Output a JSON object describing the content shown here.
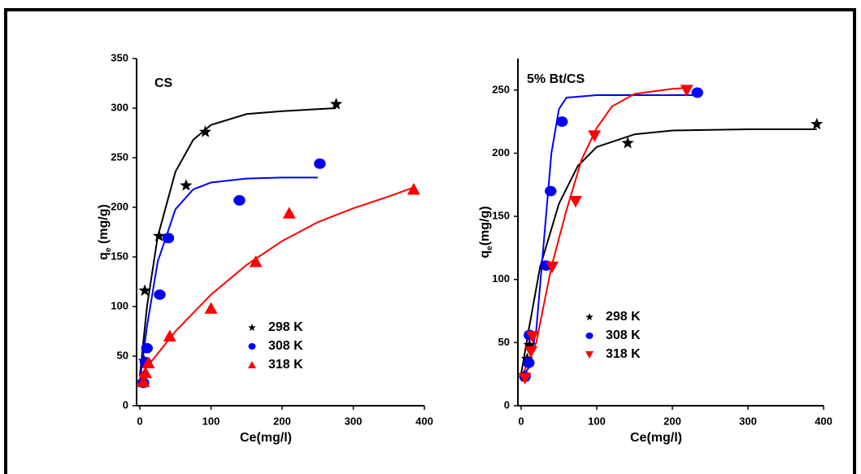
{
  "chart_data": [
    {
      "type": "scatter",
      "title": "CS",
      "xlabel": "Ce(mg/l)",
      "ylabel": [
        "q",
        "e",
        " (mg/g)"
      ],
      "xlim": [
        0,
        400
      ],
      "xticks": [
        0,
        100,
        200,
        300,
        400
      ],
      "ylim": [
        0,
        350
      ],
      "yticks": [
        0,
        50,
        100,
        150,
        200,
        250,
        300,
        350
      ],
      "series": [
        {
          "name": "298 K",
          "color": "#000000",
          "marker": "star",
          "x": [
            4,
            6,
            7,
            27,
            65,
            92,
            276
          ],
          "values": [
            24,
            45,
            116,
            171,
            222,
            276,
            304
          ]
        },
        {
          "name": "308 K",
          "color": "#0000ff",
          "marker": "circle",
          "x": [
            5,
            8,
            10,
            28,
            40,
            140,
            253
          ],
          "values": [
            23,
            44,
            58,
            112,
            169,
            207,
            244
          ]
        },
        {
          "name": "318 K",
          "color": "#ff0000",
          "marker": "triangle-up",
          "x": [
            5,
            8,
            12,
            42,
            100,
            163,
            210,
            385
          ],
          "values": [
            24,
            33,
            43,
            70,
            98,
            145,
            194,
            218
          ]
        }
      ],
      "fits": [
        {
          "color": "#000000",
          "x": [
            0,
            10,
            25,
            50,
            75,
            100,
            150,
            200,
            250,
            276
          ],
          "y": [
            30,
            100,
            170,
            236,
            268,
            283,
            294,
            297,
            299,
            300
          ]
        },
        {
          "color": "#0000ff",
          "x": [
            0,
            10,
            25,
            50,
            75,
            100,
            150,
            200,
            250
          ],
          "y": [
            25,
            80,
            145,
            198,
            218,
            225,
            229,
            230,
            230
          ]
        },
        {
          "color": "#ff0000",
          "x": [
            0,
            50,
            100,
            150,
            200,
            250,
            300,
            350,
            385
          ],
          "y": [
            30,
            75,
            112,
            142,
            166,
            185,
            199,
            211,
            220
          ]
        }
      ]
    },
    {
      "type": "scatter",
      "title": "5% Bt/CS",
      "xlabel": "Ce(mg/l)",
      "ylabel": [
        "q",
        "e",
        "(mg/g)"
      ],
      "xlim": [
        0,
        400
      ],
      "xticks": [
        0,
        100,
        200,
        300,
        400
      ],
      "ylim": [
        0,
        275
      ],
      "yticks": [
        0,
        50,
        100,
        150,
        200,
        250
      ],
      "series": [
        {
          "name": "298 K",
          "color": "#000000",
          "marker": "star",
          "x": [
            5,
            8,
            11,
            141,
            391
          ],
          "values": [
            23,
            37,
            48,
            208,
            223
          ]
        },
        {
          "name": "308 K",
          "color": "#0000ff",
          "marker": "circle",
          "x": [
            5,
            10,
            11,
            33,
            39,
            54,
            233
          ],
          "values": [
            23,
            34,
            56,
            111,
            170,
            225,
            248
          ]
        },
        {
          "name": "318 K",
          "color": "#ff0000",
          "marker": "triangle-down",
          "x": [
            5,
            13,
            15,
            41,
            72,
            97,
            219
          ],
          "values": [
            22,
            43,
            55,
            110,
            162,
            214,
            250
          ]
        }
      ],
      "fits": [
        {
          "color": "#000000",
          "x": [
            0,
            10,
            25,
            50,
            75,
            100,
            150,
            200,
            300,
            391
          ],
          "y": [
            25,
            60,
            110,
            160,
            190,
            205,
            215,
            218,
            219,
            219
          ]
        },
        {
          "color": "#0000ff",
          "x": [
            0,
            10,
            20,
            30,
            40,
            50,
            60,
            100,
            235
          ],
          "y": [
            22,
            30,
            60,
            130,
            200,
            235,
            244,
            246,
            246
          ]
        },
        {
          "color": "#ff0000",
          "x": [
            0,
            20,
            40,
            60,
            80,
            100,
            120,
            150,
            200,
            225
          ],
          "y": [
            22,
            50,
            110,
            155,
            195,
            220,
            237,
            247,
            251,
            252
          ]
        }
      ]
    }
  ]
}
